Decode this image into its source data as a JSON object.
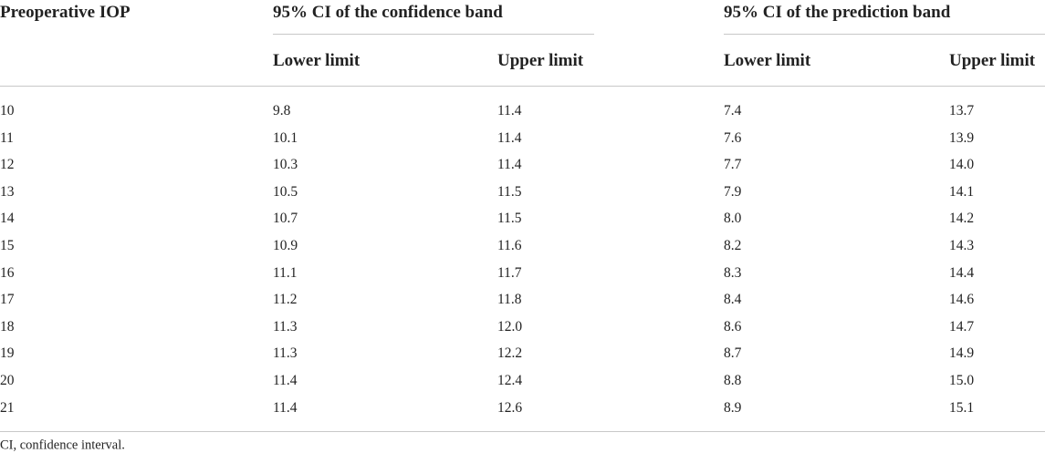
{
  "table": {
    "header": {
      "first": "Preoperative IOP",
      "groups": [
        "95% CI of the confidence band",
        "95% CI of the prediction band"
      ],
      "sub": [
        "Lower limit",
        "Upper limit",
        "Lower limit",
        "Upper limit"
      ]
    },
    "rows": [
      [
        "10",
        "9.8",
        "11.4",
        "7.4",
        "13.7"
      ],
      [
        "11",
        "10.1",
        "11.4",
        "7.6",
        "13.9"
      ],
      [
        "12",
        "10.3",
        "11.4",
        "7.7",
        "14.0"
      ],
      [
        "13",
        "10.5",
        "11.5",
        "7.9",
        "14.1"
      ],
      [
        "14",
        "10.7",
        "11.5",
        "8.0",
        "14.2"
      ],
      [
        "15",
        "10.9",
        "11.6",
        "8.2",
        "14.3"
      ],
      [
        "16",
        "11.1",
        "11.7",
        "8.3",
        "14.4"
      ],
      [
        "17",
        "11.2",
        "11.8",
        "8.4",
        "14.6"
      ],
      [
        "18",
        "11.3",
        "12.0",
        "8.6",
        "14.7"
      ],
      [
        "19",
        "11.3",
        "12.2",
        "8.7",
        "14.9"
      ],
      [
        "20",
        "11.4",
        "12.4",
        "8.8",
        "15.0"
      ],
      [
        "21",
        "11.4",
        "12.6",
        "8.9",
        "15.1"
      ]
    ],
    "footnote": "CI, confidence interval."
  }
}
